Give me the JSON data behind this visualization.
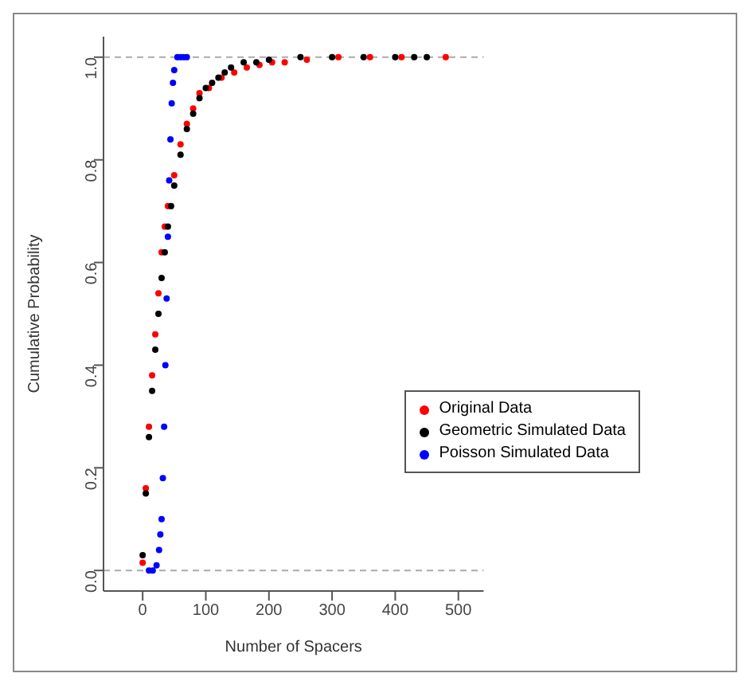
{
  "chart_data": {
    "type": "scatter",
    "xlabel": "Number of Spacers",
    "ylabel": "Cumulative Probability",
    "xlim": [
      -62,
      540
    ],
    "ylim": [
      -0.04,
      1.04
    ],
    "xticks": [
      0,
      100,
      200,
      300,
      400,
      500
    ],
    "yticks": [
      {
        "value": 0,
        "label": "0.0"
      },
      0.2,
      0.4,
      0.6,
      0.8,
      {
        "value": 1,
        "label": "1.0"
      }
    ],
    "grid": false,
    "legend": "right",
    "marker": "circle",
    "ref_lines": [
      {
        "axis": "y",
        "value": 0,
        "color": "#aaaaaa",
        "line_style": "dashed"
      },
      {
        "axis": "y",
        "value": 1,
        "color": "#aaaaaa",
        "line_style": "dashed"
      }
    ],
    "series": [
      {
        "name": "Original Data",
        "color": "#ff0000",
        "x": [
          0,
          5,
          10,
          15,
          20,
          25,
          30,
          35,
          40,
          50,
          60,
          70,
          80,
          90,
          105,
          125,
          145,
          165,
          185,
          205,
          225,
          260,
          310,
          360,
          410,
          480
        ],
        "values": [
          0.015,
          0.16,
          0.28,
          0.38,
          0.46,
          0.54,
          0.62,
          0.67,
          0.71,
          0.77,
          0.83,
          0.87,
          0.9,
          0.93,
          0.94,
          0.96,
          0.97,
          0.98,
          0.985,
          0.99,
          0.99,
          0.995,
          1,
          1,
          1,
          1
        ]
      },
      {
        "name": "Geometric Simulated Data",
        "color": "#000000",
        "x": [
          0,
          5,
          10,
          15,
          20,
          25,
          30,
          35,
          40,
          45,
          50,
          60,
          70,
          80,
          90,
          100,
          110,
          120,
          130,
          140,
          160,
          180,
          200,
          250,
          300,
          350,
          400,
          430,
          450
        ],
        "values": [
          0.03,
          0.15,
          0.26,
          0.35,
          0.43,
          0.5,
          0.57,
          0.62,
          0.67,
          0.71,
          0.75,
          0.81,
          0.86,
          0.89,
          0.92,
          0.94,
          0.95,
          0.96,
          0.97,
          0.98,
          0.99,
          0.99,
          0.995,
          1,
          1,
          1,
          1,
          1,
          1
        ]
      },
      {
        "name": "Poisson Simulated Data",
        "color": "#0000ff",
        "x": [
          10,
          16,
          22,
          26,
          28,
          30,
          32,
          34,
          36,
          38,
          40,
          42,
          44,
          46,
          48,
          50,
          55,
          60,
          65,
          70
        ],
        "values": [
          0,
          0,
          0.01,
          0.04,
          0.07,
          0.1,
          0.18,
          0.28,
          0.4,
          0.53,
          0.65,
          0.76,
          0.84,
          0.91,
          0.95,
          0.975,
          1,
          1,
          1,
          1
        ]
      }
    ]
  }
}
